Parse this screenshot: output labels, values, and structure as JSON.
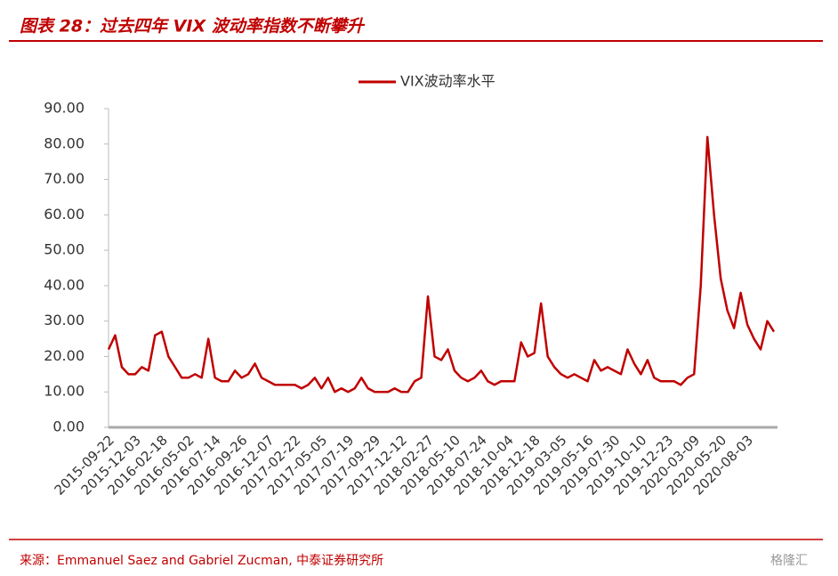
{
  "header": {
    "title": "图表 28：过去四年 VIX 波动率指数不断攀升"
  },
  "chart_data": {
    "type": "line",
    "categories": [
      "2015-09-22",
      null,
      null,
      null,
      "2015-12-03",
      null,
      null,
      null,
      "2016-02-18",
      null,
      null,
      null,
      "2016-05-02",
      null,
      null,
      null,
      "2016-07-14",
      null,
      null,
      null,
      "2016-09-26",
      null,
      null,
      null,
      "2016-12-07",
      null,
      null,
      null,
      "2017-02-22",
      null,
      null,
      null,
      "2017-05-05",
      null,
      null,
      null,
      "2017-07-19",
      null,
      null,
      null,
      "2017-09-29",
      null,
      null,
      null,
      "2017-12-12",
      null,
      null,
      null,
      "2018-02-27",
      null,
      null,
      null,
      "2018-05-10",
      null,
      null,
      null,
      "2018-07-24",
      null,
      null,
      null,
      "2018-10-04",
      null,
      null,
      null,
      "2018-12-18",
      null,
      null,
      null,
      "2019-03-05",
      null,
      null,
      null,
      "2019-05-16",
      null,
      null,
      null,
      "2019-07-30",
      null,
      null,
      null,
      "2019-10-10",
      null,
      null,
      null,
      "2019-12-23",
      null,
      null,
      null,
      "2020-03-09",
      null,
      null,
      null,
      "2020-05-20",
      null,
      null,
      null,
      "2020-08-03",
      null,
      null,
      null,
      null
    ],
    "series": [
      {
        "name": "VIX波动率水平",
        "color": "#c00000",
        "values": [
          22,
          26,
          17,
          15,
          15,
          17,
          16,
          26,
          27,
          20,
          17,
          14,
          14,
          15,
          14,
          25,
          14,
          13,
          13,
          16,
          14,
          15,
          18,
          14,
          13,
          12,
          12,
          12,
          12,
          11,
          12,
          14,
          11,
          14,
          10,
          11,
          10,
          11,
          14,
          11,
          10,
          10,
          10,
          11,
          10,
          10,
          13,
          14,
          37,
          20,
          19,
          22,
          16,
          14,
          13,
          14,
          16,
          13,
          12,
          13,
          13,
          13,
          24,
          20,
          21,
          35,
          20,
          17,
          15,
          14,
          15,
          14,
          13,
          19,
          16,
          17,
          16,
          15,
          22,
          18,
          15,
          19,
          14,
          13,
          13,
          13,
          12,
          14,
          15,
          40,
          82,
          60,
          42,
          33,
          28,
          38,
          29,
          25,
          22,
          30,
          27
        ]
      }
    ],
    "ylim": [
      0,
      90
    ],
    "yticks": [
      {
        "value": 0,
        "label": "0.00"
      },
      {
        "value": 10,
        "label": "10.00"
      },
      {
        "value": 20,
        "label": "20.00"
      },
      {
        "value": 30,
        "label": "30.00"
      },
      {
        "value": 40,
        "label": "40.00"
      },
      {
        "value": 50,
        "label": "50.00"
      },
      {
        "value": 60,
        "label": "60.00"
      },
      {
        "value": 70,
        "label": "70.00"
      },
      {
        "value": 80,
        "label": "80.00"
      },
      {
        "value": 90,
        "label": "90.00"
      }
    ],
    "legend": "top"
  },
  "footer": {
    "source": "来源：Emmanuel Saez and Gabriel Zucman, 中泰证券研究所",
    "watermark": "格隆汇"
  }
}
